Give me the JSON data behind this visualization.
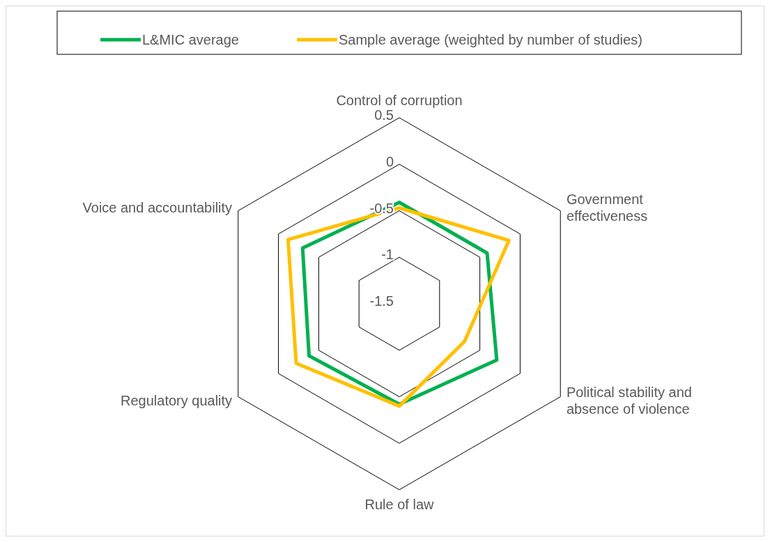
{
  "chart_data": {
    "type": "radar",
    "categories": [
      "Control of corruption",
      "Government effectiveness",
      "Political stability and absence of violence",
      "Rule of law",
      "Regulatory quality",
      "Voice and accountability"
    ],
    "series": [
      {
        "name": "L&MIC average",
        "color": "#00b050",
        "values": [
          -0.41,
          -0.41,
          -0.29,
          -0.42,
          -0.38,
          -0.3
        ]
      },
      {
        "name": "Sample average (weighted by number of studies)",
        "color": "#ffc000",
        "values": [
          -0.47,
          -0.14,
          -0.69,
          -0.4,
          -0.22,
          -0.12
        ]
      }
    ],
    "ylim": [
      -1.5,
      0.5
    ],
    "yticks": [
      -1.5,
      -1,
      -0.5,
      0,
      0.5
    ],
    "legend": "top",
    "grid": true
  }
}
